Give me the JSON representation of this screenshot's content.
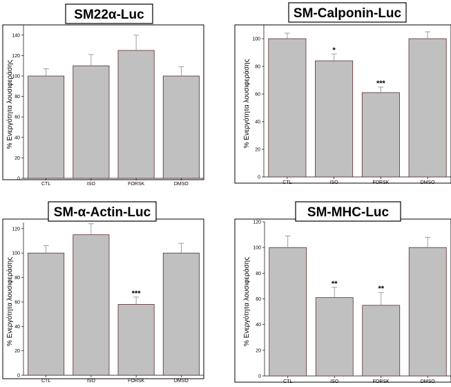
{
  "chart_data": [
    {
      "type": "bar",
      "title": "SM22α-Luc",
      "ylabel": "% Ενεργότητα λουσιφεράσης",
      "xlabel": "",
      "categories": [
        "CTL",
        "ISO",
        "FORSK",
        "DMSO"
      ],
      "values": [
        100,
        110,
        125,
        100
      ],
      "errors": [
        7,
        11,
        15,
        9
      ],
      "significance": [
        "",
        "",
        "",
        ""
      ],
      "ylim": [
        0,
        150
      ],
      "yticks": [
        0,
        20,
        40,
        60,
        80,
        100,
        120,
        140
      ]
    },
    {
      "type": "bar",
      "title": "SM-Calponin-Luc",
      "ylabel": "% Ενεργότητα λουσιφεράσης",
      "xlabel": "",
      "categories": [
        "CTL",
        "ISO",
        "FORSK",
        "DMSO"
      ],
      "values": [
        100,
        84,
        61,
        100
      ],
      "errors": [
        4,
        5,
        4,
        5
      ],
      "significance": [
        "",
        "*",
        "***",
        ""
      ],
      "ylim": [
        0,
        110
      ],
      "yticks": [
        0,
        20,
        40,
        60,
        80,
        100
      ]
    },
    {
      "type": "bar",
      "title": "SM-α-Actin-Luc",
      "ylabel": "% Ενεργότητα λουσιφεράσης",
      "xlabel": "",
      "categories": [
        "CTL",
        "ISO",
        "FORSK",
        "DMSO"
      ],
      "values": [
        100,
        115,
        58,
        100
      ],
      "errors": [
        6,
        9,
        6,
        8
      ],
      "significance": [
        "",
        "",
        "***",
        ""
      ],
      "ylim": [
        0,
        125
      ],
      "yticks": [
        0,
        20,
        40,
        60,
        80,
        100,
        120
      ]
    },
    {
      "type": "bar",
      "title": "SM-MHC-Luc",
      "ylabel": "% Ενεργότητα λουσιφεράσης",
      "xlabel": "",
      "categories": [
        "CTL",
        "ISO",
        "FORSK",
        "DMSO"
      ],
      "values": [
        100,
        61,
        55,
        100
      ],
      "errors": [
        9,
        8,
        10,
        8
      ],
      "significance": [
        "",
        "**",
        "**",
        ""
      ],
      "ylim": [
        0,
        120
      ],
      "yticks": [
        0,
        20,
        40,
        60,
        80,
        100,
        120
      ]
    }
  ],
  "colors": {
    "bar_fill": "#c0c0c0",
    "bar_edge": "#5a2a2a",
    "error_bar": "#888888"
  }
}
